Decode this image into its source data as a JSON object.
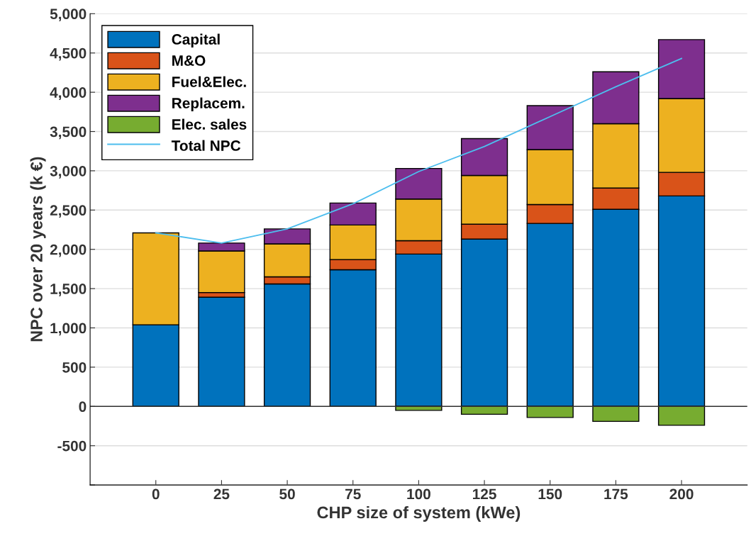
{
  "chart_data": {
    "type": "bar",
    "stacked": true,
    "xlabel": "CHP size of system (kWe)",
    "ylabel": "NPC over 20 years (k €)",
    "x": [
      0,
      25,
      50,
      75,
      100,
      125,
      150,
      175,
      200
    ],
    "xlim": [
      -25,
      225
    ],
    "xticks": [
      0,
      25,
      50,
      75,
      100,
      125,
      150,
      175,
      200
    ],
    "ylim": [
      -1000,
      5000
    ],
    "yticks": [
      {
        "value": -1000,
        "label": null
      },
      {
        "value": -500,
        "label": "-500"
      },
      0,
      {
        "value": 500,
        "label": "500"
      },
      {
        "value": 1000,
        "label": "1,000"
      },
      {
        "value": 1500,
        "label": "1,500"
      },
      {
        "value": 2000,
        "label": "2,000"
      },
      {
        "value": 2500,
        "label": "2,500"
      },
      {
        "value": 3000,
        "label": "3,000"
      },
      {
        "value": 3500,
        "label": "3,500"
      },
      {
        "value": 4000,
        "label": "4,000"
      },
      {
        "value": 4500,
        "label": "4,500"
      },
      {
        "value": 5000,
        "label": "5,000"
      }
    ],
    "grid": "y",
    "legend": "top left",
    "series": [
      {
        "name": "Capital",
        "color": "#0072bd",
        "values": [
          1040,
          1390,
          1560,
          1740,
          1940,
          2130,
          2330,
          2510,
          2680
        ]
      },
      {
        "name": "M&O",
        "color": "#d95319",
        "values": [
          0,
          60,
          90,
          130,
          170,
          190,
          240,
          270,
          300
        ]
      },
      {
        "name": "Fuel&Elec.",
        "color": "#edb120",
        "values": [
          1170,
          530,
          420,
          440,
          530,
          620,
          700,
          820,
          940
        ]
      },
      {
        "name": "Replacem.",
        "color": "#7e2f8e",
        "values": [
          0,
          100,
          190,
          280,
          390,
          470,
          560,
          660,
          750
        ]
      },
      {
        "name": "Elec. sales",
        "color": "#77ac30",
        "values": [
          0,
          0,
          0,
          null,
          -50,
          -100,
          -140,
          -190,
          -240
        ]
      },
      {
        "name": "Total NPC",
        "type": "line",
        "color": "#4dbeee",
        "values": [
          2210,
          2080,
          2260,
          2580,
          2990,
          3310,
          3690,
          4070,
          4430
        ]
      }
    ]
  }
}
